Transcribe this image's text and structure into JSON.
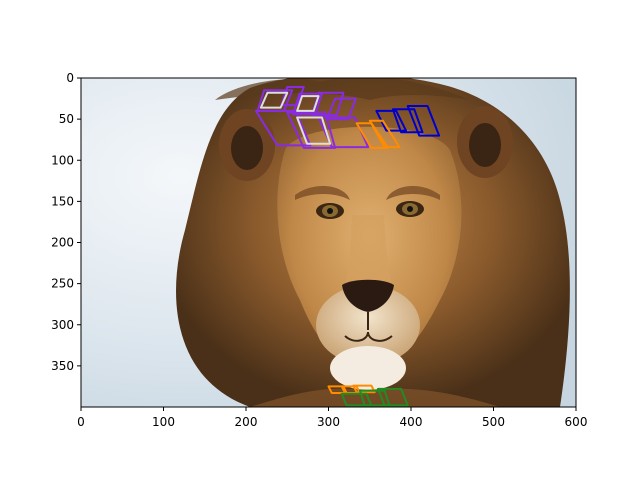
{
  "chart_data": {
    "type": "scatter",
    "title": "",
    "xlabel": "",
    "ylabel": "",
    "xlim": [
      0,
      600
    ],
    "ylim": [
      400,
      0
    ],
    "y_inverted": true,
    "grid": false,
    "x_ticks": [
      0,
      100,
      200,
      300,
      400,
      500,
      600
    ],
    "y_ticks": [
      0,
      50,
      100,
      150,
      200,
      250,
      300,
      350
    ],
    "background_image": "lion-face-photo",
    "annotation_series": [
      {
        "color": "#8a2be2",
        "polygons": [
          [
            [
              222,
              15
            ],
            [
              256,
              15
            ],
            [
              246,
              40
            ],
            [
              214,
              40
            ]
          ],
          [
            [
              250,
              11
            ],
            [
              270,
              11
            ],
            [
              262,
              33
            ],
            [
              243,
              33
            ]
          ],
          [
            [
              265,
              19
            ],
            [
              292,
              19
            ],
            [
              284,
              44
            ],
            [
              257,
              44
            ]
          ],
          [
            [
              288,
              18
            ],
            [
              318,
              18
            ],
            [
              310,
              45
            ],
            [
              280,
              45
            ]
          ],
          [
            [
              308,
              25
            ],
            [
              333,
              25
            ],
            [
              324,
              50
            ],
            [
              298,
              50
            ]
          ],
          [
            [
              212,
              40
            ],
            [
              260,
              40
            ],
            [
              278,
              82
            ],
            [
              238,
              82
            ]
          ],
          [
            [
              250,
              42
            ],
            [
              296,
              42
            ],
            [
              308,
              85
            ],
            [
              270,
              85
            ]
          ],
          [
            [
              288,
              48
            ],
            [
              332,
              48
            ],
            [
              348,
              84
            ],
            [
              304,
              84
            ]
          ]
        ]
      },
      {
        "color": "#0000cd",
        "polygons": [
          [
            [
              358,
              40
            ],
            [
              382,
              40
            ],
            [
              394,
              64
            ],
            [
              370,
              64
            ]
          ],
          [
            [
              378,
              38
            ],
            [
              404,
              38
            ],
            [
              414,
              66
            ],
            [
              388,
              66
            ]
          ],
          [
            [
              396,
              34
            ],
            [
              420,
              34
            ],
            [
              434,
              70
            ],
            [
              410,
              70
            ]
          ]
        ]
      },
      {
        "color": "#ff8c00",
        "polygons": [
          [
            [
              334,
              55
            ],
            [
              352,
              55
            ],
            [
              372,
              85
            ],
            [
              352,
              85
            ]
          ],
          [
            [
              350,
              52
            ],
            [
              366,
              52
            ],
            [
              386,
              84
            ],
            [
              368,
              84
            ]
          ],
          [
            [
              300,
              375
            ],
            [
              318,
              375
            ],
            [
              322,
              383
            ],
            [
              304,
              383
            ]
          ],
          [
            [
              316,
              375
            ],
            [
              334,
              375
            ],
            [
              338,
              383
            ],
            [
              320,
              383
            ]
          ],
          [
            [
              330,
              374
            ],
            [
              352,
              374
            ],
            [
              356,
              382
            ],
            [
              334,
              382
            ]
          ]
        ]
      },
      {
        "color": "#228b22",
        "polygons": [
          [
            [
              316,
              384
            ],
            [
              346,
              384
            ],
            [
              352,
              398
            ],
            [
              322,
              398
            ]
          ],
          [
            [
              338,
              380
            ],
            [
              368,
              380
            ],
            [
              374,
              398
            ],
            [
              344,
              398
            ]
          ],
          [
            [
              360,
              378
            ],
            [
              388,
              378
            ],
            [
              396,
              398
            ],
            [
              368,
              398
            ]
          ]
        ]
      },
      {
        "color": "#dedede",
        "polygons": [
          [
            [
              226,
              18
            ],
            [
              250,
              18
            ],
            [
              242,
              36
            ],
            [
              218,
              36
            ]
          ],
          [
            [
              268,
              22
            ],
            [
              288,
              22
            ],
            [
              282,
              40
            ],
            [
              262,
              40
            ]
          ],
          [
            [
              262,
              48
            ],
            [
              292,
              48
            ],
            [
              302,
              80
            ],
            [
              274,
              80
            ]
          ]
        ]
      }
    ]
  }
}
